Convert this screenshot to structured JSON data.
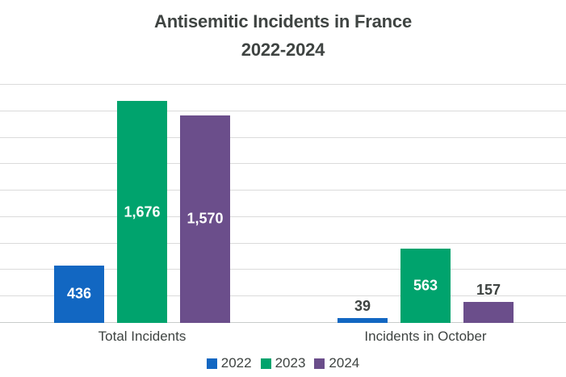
{
  "title": {
    "line1": "Antisemitic Incidents in France",
    "line2": "2022-2024"
  },
  "chart_data": {
    "type": "bar",
    "title": "Antisemitic Incidents in France 2022-2024",
    "categories": [
      "Total Incidents",
      "Incidents in October"
    ],
    "series": [
      {
        "name": "2022",
        "color": "#1267C2",
        "values": [
          436,
          39
        ],
        "value_labels": [
          "436",
          "39"
        ]
      },
      {
        "name": "2023",
        "color": "#00A36D",
        "values": [
          1676,
          563
        ],
        "value_labels": [
          "1,676",
          "563"
        ]
      },
      {
        "name": "2024",
        "color": "#6B4E8B",
        "values": [
          1570,
          157
        ],
        "value_labels": [
          "1,570",
          "157"
        ]
      }
    ],
    "xlabel": "",
    "ylabel": "",
    "ylim": [
      0,
      1800
    ],
    "grid_step": 200,
    "grid": "horizontal",
    "y_tick_labels_visible": false,
    "legend_position": "bottom"
  },
  "colors": {
    "title": "#3F4442",
    "text": "#3F4442",
    "bar_label_inside": "#FFFFFF",
    "gridline": "#DBDBDB",
    "axis_line": "#C9CCCB",
    "background": "#FFFFFF"
  }
}
